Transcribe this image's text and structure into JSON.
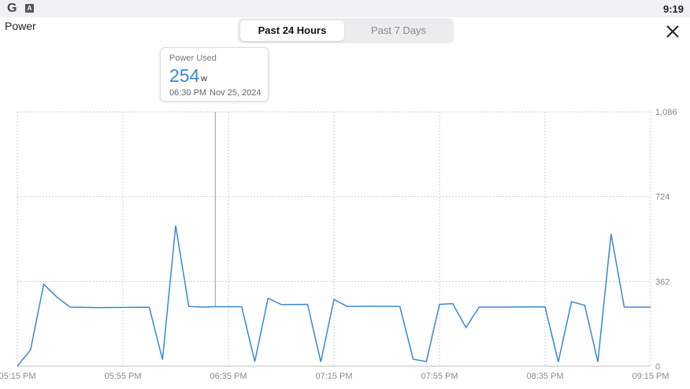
{
  "status_bar": {
    "time": "9:19",
    "icons": [
      "google-g-icon",
      "a-badge-icon"
    ]
  },
  "page_title": "Power",
  "tabs": [
    {
      "label": "Past 24 Hours",
      "active": true
    },
    {
      "label": "Past 7 Days",
      "active": false
    }
  ],
  "tooltip": {
    "title": "Power Used",
    "value": "254",
    "unit": "w",
    "time": "06:30 PM",
    "date": "Nov 25, 2024"
  },
  "colors": {
    "line": "#3a87d6",
    "grid": "#cfcfcf",
    "cursor": "#9a9a9a"
  },
  "chart_data": {
    "type": "line",
    "x_tick_labels": [
      "05:15 PM",
      "05:55 PM",
      "06:35 PM",
      "07:15 PM",
      "07:55 PM",
      "08:35 PM",
      "09:15 PM"
    ],
    "y_tick_labels": [
      "1,086",
      "724",
      "362",
      "0"
    ],
    "ylim": [
      0,
      1086
    ],
    "xlim_minutes_after_first_tick": [
      0,
      240
    ],
    "grid": true,
    "cursor_at_minutes": 75,
    "series": [
      {
        "points": [
          [
            0,
            0
          ],
          [
            5,
            70
          ],
          [
            10,
            350
          ],
          [
            15,
            295
          ],
          [
            20,
            252
          ],
          [
            30,
            250
          ],
          [
            45,
            251
          ],
          [
            50,
            251
          ],
          [
            55,
            28
          ],
          [
            60,
            600
          ],
          [
            65,
            255
          ],
          [
            70,
            252
          ],
          [
            75,
            254
          ],
          [
            85,
            254
          ],
          [
            90,
            20
          ],
          [
            95,
            290
          ],
          [
            100,
            263
          ],
          [
            110,
            264
          ],
          [
            115,
            18
          ],
          [
            120,
            285
          ],
          [
            125,
            255
          ],
          [
            135,
            256
          ],
          [
            145,
            255
          ],
          [
            150,
            30
          ],
          [
            155,
            20
          ],
          [
            160,
            264
          ],
          [
            165,
            267
          ],
          [
            170,
            165
          ],
          [
            175,
            252
          ],
          [
            185,
            252
          ],
          [
            195,
            253
          ],
          [
            200,
            253
          ],
          [
            205,
            18
          ],
          [
            210,
            275
          ],
          [
            215,
            260
          ],
          [
            220,
            18
          ],
          [
            225,
            565
          ],
          [
            230,
            252
          ],
          [
            240,
            252
          ]
        ]
      }
    ]
  }
}
